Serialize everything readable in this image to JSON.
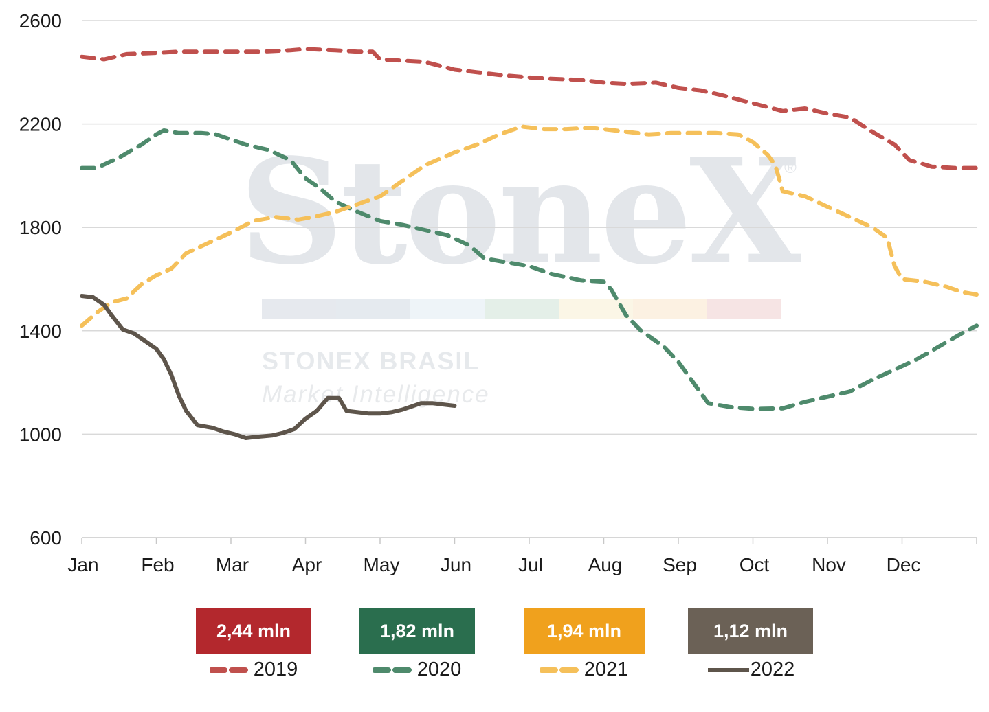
{
  "chart_data": {
    "type": "line",
    "title": "",
    "xlabel": "",
    "ylabel": "",
    "ylim": [
      600,
      2600
    ],
    "yticks": [
      600,
      1000,
      1400,
      1800,
      2200,
      2600
    ],
    "xticks": [
      "Jan",
      "Feb",
      "Mar",
      "Apr",
      "May",
      "Jun",
      "Jul",
      "Aug",
      "Sep",
      "Oct",
      "Nov",
      "Dec"
    ],
    "grid": true,
    "legend_position": "bottom",
    "series": [
      {
        "name": "2019",
        "color": "#c0504d",
        "style": "dashed",
        "points": [
          [
            0,
            2460
          ],
          [
            0.3,
            2450
          ],
          [
            0.6,
            2470
          ],
          [
            1.0,
            2475
          ],
          [
            1.3,
            2480
          ],
          [
            1.6,
            2480
          ],
          [
            2.0,
            2480
          ],
          [
            2.4,
            2480
          ],
          [
            2.8,
            2485
          ],
          [
            3.0,
            2490
          ],
          [
            3.4,
            2485
          ],
          [
            3.7,
            2480
          ],
          [
            3.9,
            2480
          ],
          [
            4.0,
            2450
          ],
          [
            4.3,
            2445
          ],
          [
            4.6,
            2440
          ],
          [
            5.0,
            2410
          ],
          [
            5.3,
            2400
          ],
          [
            5.6,
            2390
          ],
          [
            6.0,
            2380
          ],
          [
            6.3,
            2375
          ],
          [
            6.7,
            2370
          ],
          [
            7.0,
            2360
          ],
          [
            7.3,
            2355
          ],
          [
            7.7,
            2360
          ],
          [
            8.0,
            2340
          ],
          [
            8.3,
            2330
          ],
          [
            8.6,
            2310
          ],
          [
            9.0,
            2280
          ],
          [
            9.4,
            2250
          ],
          [
            9.7,
            2260
          ],
          [
            10.0,
            2240
          ],
          [
            10.3,
            2225
          ],
          [
            10.6,
            2170
          ],
          [
            10.9,
            2120
          ],
          [
            11.1,
            2060
          ],
          [
            11.4,
            2035
          ],
          [
            11.7,
            2030
          ],
          [
            12.0,
            2030
          ]
        ]
      },
      {
        "name": "2020",
        "color": "#4e8a6c",
        "style": "dashed",
        "points": [
          [
            0,
            2030
          ],
          [
            0.2,
            2030
          ],
          [
            0.5,
            2070
          ],
          [
            0.8,
            2120
          ],
          [
            1.0,
            2160
          ],
          [
            1.1,
            2175
          ],
          [
            1.3,
            2165
          ],
          [
            1.6,
            2165
          ],
          [
            1.8,
            2160
          ],
          [
            2.0,
            2140
          ],
          [
            2.2,
            2120
          ],
          [
            2.5,
            2100
          ],
          [
            2.8,
            2060
          ],
          [
            3.0,
            1990
          ],
          [
            3.2,
            1950
          ],
          [
            3.4,
            1900
          ],
          [
            3.7,
            1860
          ],
          [
            4.0,
            1825
          ],
          [
            4.3,
            1810
          ],
          [
            4.6,
            1790
          ],
          [
            4.9,
            1770
          ],
          [
            5.2,
            1730
          ],
          [
            5.4,
            1680
          ],
          [
            5.7,
            1665
          ],
          [
            6.0,
            1650
          ],
          [
            6.3,
            1620
          ],
          [
            6.7,
            1595
          ],
          [
            7.0,
            1590
          ],
          [
            7.1,
            1560
          ],
          [
            7.3,
            1460
          ],
          [
            7.5,
            1400
          ],
          [
            7.8,
            1340
          ],
          [
            8.0,
            1280
          ],
          [
            8.2,
            1200
          ],
          [
            8.4,
            1120
          ],
          [
            8.7,
            1105
          ],
          [
            9.0,
            1098
          ],
          [
            9.4,
            1100
          ],
          [
            9.7,
            1125
          ],
          [
            10.0,
            1145
          ],
          [
            10.3,
            1165
          ],
          [
            10.6,
            1210
          ],
          [
            10.9,
            1250
          ],
          [
            11.2,
            1290
          ],
          [
            11.5,
            1340
          ],
          [
            11.8,
            1390
          ],
          [
            12.0,
            1420
          ]
        ]
      },
      {
        "name": "2021",
        "color": "#f5c05a",
        "style": "dashed",
        "points": [
          [
            0,
            1420
          ],
          [
            0.2,
            1470
          ],
          [
            0.4,
            1510
          ],
          [
            0.6,
            1525
          ],
          [
            0.8,
            1580
          ],
          [
            1.0,
            1615
          ],
          [
            1.2,
            1640
          ],
          [
            1.4,
            1700
          ],
          [
            1.7,
            1740
          ],
          [
            2.0,
            1780
          ],
          [
            2.3,
            1825
          ],
          [
            2.6,
            1840
          ],
          [
            2.9,
            1830
          ],
          [
            3.1,
            1840
          ],
          [
            3.4,
            1860
          ],
          [
            3.7,
            1890
          ],
          [
            4.0,
            1920
          ],
          [
            4.3,
            1980
          ],
          [
            4.6,
            2040
          ],
          [
            5.0,
            2090
          ],
          [
            5.3,
            2120
          ],
          [
            5.6,
            2160
          ],
          [
            5.9,
            2190
          ],
          [
            6.2,
            2180
          ],
          [
            6.5,
            2180
          ],
          [
            6.8,
            2185
          ],
          [
            7.0,
            2180
          ],
          [
            7.3,
            2170
          ],
          [
            7.6,
            2160
          ],
          [
            7.9,
            2165
          ],
          [
            8.2,
            2165
          ],
          [
            8.5,
            2165
          ],
          [
            8.8,
            2160
          ],
          [
            9.0,
            2130
          ],
          [
            9.2,
            2080
          ],
          [
            9.3,
            2040
          ],
          [
            9.4,
            1940
          ],
          [
            9.7,
            1920
          ],
          [
            10.0,
            1880
          ],
          [
            10.3,
            1840
          ],
          [
            10.6,
            1800
          ],
          [
            10.8,
            1760
          ],
          [
            10.9,
            1650
          ],
          [
            11.0,
            1600
          ],
          [
            11.3,
            1590
          ],
          [
            11.6,
            1570
          ],
          [
            11.8,
            1550
          ],
          [
            12.0,
            1540
          ]
        ]
      },
      {
        "name": "2022",
        "color": "#5e554b",
        "style": "solid",
        "points": [
          [
            0,
            1535
          ],
          [
            0.15,
            1530
          ],
          [
            0.3,
            1500
          ],
          [
            0.4,
            1460
          ],
          [
            0.55,
            1405
          ],
          [
            0.7,
            1390
          ],
          [
            0.85,
            1360
          ],
          [
            1.0,
            1330
          ],
          [
            1.1,
            1290
          ],
          [
            1.2,
            1230
          ],
          [
            1.3,
            1150
          ],
          [
            1.4,
            1090
          ],
          [
            1.55,
            1035
          ],
          [
            1.75,
            1025
          ],
          [
            1.9,
            1010
          ],
          [
            2.05,
            1000
          ],
          [
            2.2,
            985
          ],
          [
            2.35,
            990
          ],
          [
            2.55,
            995
          ],
          [
            2.7,
            1005
          ],
          [
            2.85,
            1020
          ],
          [
            3.0,
            1060
          ],
          [
            3.15,
            1090
          ],
          [
            3.3,
            1140
          ],
          [
            3.45,
            1140
          ],
          [
            3.55,
            1090
          ],
          [
            3.7,
            1085
          ],
          [
            3.85,
            1080
          ],
          [
            4.0,
            1080
          ],
          [
            4.15,
            1085
          ],
          [
            4.3,
            1095
          ],
          [
            4.45,
            1110
          ],
          [
            4.55,
            1120
          ],
          [
            4.7,
            1120
          ],
          [
            4.85,
            1115
          ],
          [
            5.0,
            1110
          ]
        ]
      }
    ]
  },
  "summary_boxes": [
    {
      "value": "2,44 mln",
      "year": "2019",
      "color": "#b3282d"
    },
    {
      "value": "1,82 mln",
      "year": "2020",
      "color": "#2a6e4e"
    },
    {
      "value": "1,94 mln",
      "year": "2021",
      "color": "#f0a11d"
    },
    {
      "value": "1,12 mln",
      "year": "2022",
      "color": "#6b6156"
    }
  ],
  "watermark": {
    "brand": "StoneX",
    "registered": "®",
    "line1": "STONEX BRASIL",
    "line2": "Market Intelligence"
  }
}
